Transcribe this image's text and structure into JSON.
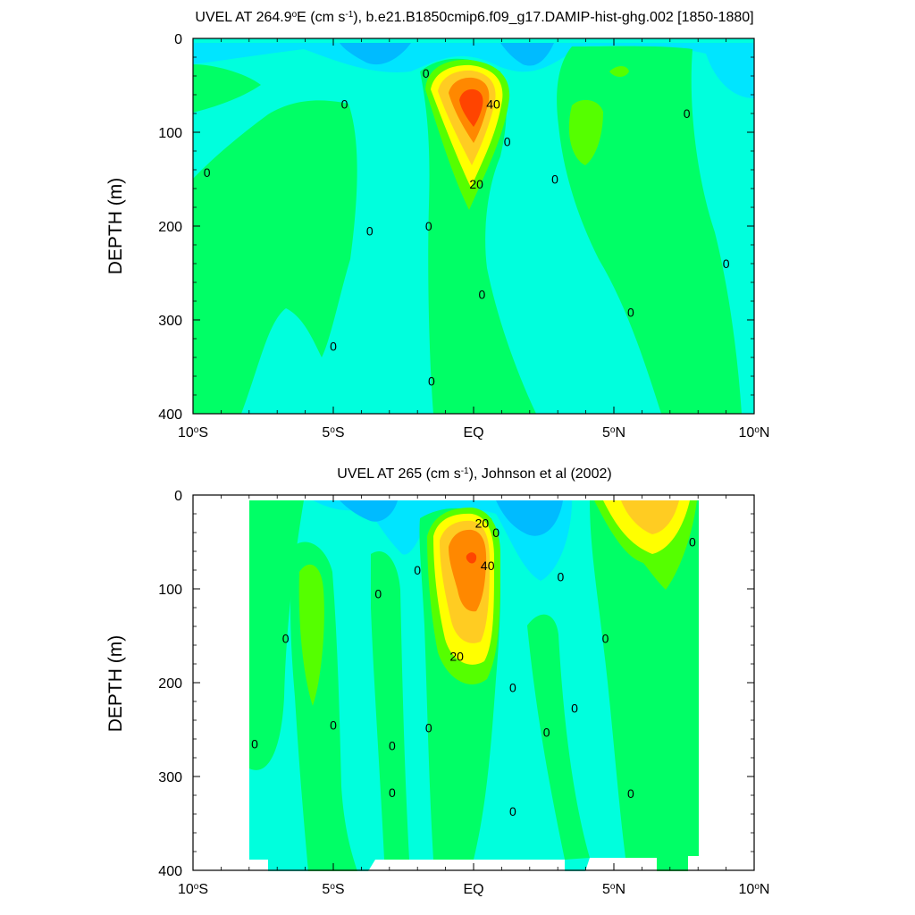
{
  "chart_data": [
    {
      "type": "heatmap",
      "title_main": "UVEL AT 264.9",
      "title_deg": "o",
      "title_unit_pre": "E (cm s",
      "title_unit_sup": "-1",
      "title_rest": "), b.e21.B1850cmip6.f09_g17.DAMIP-hist-ghg.002 [1850-1880]",
      "ylabel": "DEPTH (m)",
      "xlim": [
        -10,
        10
      ],
      "ylim": [
        0,
        400
      ],
      "y_inverted": true,
      "data_lat_range": [
        -10,
        10
      ],
      "x_ticks": [
        {
          "num": "10",
          "sup": "o",
          "suf": "S"
        },
        {
          "num": "5",
          "sup": "o",
          "suf": "S"
        },
        {
          "num": "EQ",
          "sup": "",
          "suf": ""
        },
        {
          "num": "5",
          "sup": "o",
          "suf": "N"
        },
        {
          "num": "10",
          "sup": "o",
          "suf": "N"
        }
      ],
      "y_ticks": [
        "0",
        "100",
        "200",
        "300",
        "400"
      ],
      "colors": [
        "#00E5FF",
        "#00FFDD",
        "#00FF66",
        "#55FF00",
        "#FFFF00",
        "#FFCC22",
        "#FF8800",
        "#FF4400"
      ],
      "contour_labels": [
        {
          "text": "0",
          "lat": -9.5,
          "depth": 143
        },
        {
          "text": "0",
          "lat": -4.6,
          "depth": 70
        },
        {
          "text": "0",
          "lat": -3.7,
          "depth": 205
        },
        {
          "text": "0",
          "lat": -5.0,
          "depth": 328
        },
        {
          "text": "0",
          "lat": -1.7,
          "depth": 37
        },
        {
          "text": "0",
          "lat": -1.6,
          "depth": 200
        },
        {
          "text": "0",
          "lat": -1.5,
          "depth": 365
        },
        {
          "text": "0",
          "lat": 1.2,
          "depth": 110
        },
        {
          "text": "0",
          "lat": 0.3,
          "depth": 273
        },
        {
          "text": "0",
          "lat": 2.9,
          "depth": 150
        },
        {
          "text": "0",
          "lat": 5.6,
          "depth": 292
        },
        {
          "text": "0",
          "lat": 7.6,
          "depth": 80
        },
        {
          "text": "0",
          "lat": 9.0,
          "depth": 240
        },
        {
          "text": "40",
          "lat": 0.7,
          "depth": 70
        },
        {
          "text": "20",
          "lat": 0.1,
          "depth": 155
        }
      ]
    },
    {
      "type": "heatmap",
      "title_main": "UVEL AT 265 (cm s",
      "title_deg": "",
      "title_unit_pre": "",
      "title_unit_sup": "-1",
      "title_rest": "), Johnson et al (2002)",
      "ylabel": "DEPTH (m)",
      "xlim": [
        -10,
        10
      ],
      "ylim": [
        0,
        400
      ],
      "y_inverted": true,
      "data_lat_range": [
        -8,
        8
      ],
      "x_ticks": [
        {
          "num": "10",
          "sup": "o",
          "suf": "S"
        },
        {
          "num": "5",
          "sup": "o",
          "suf": "S"
        },
        {
          "num": "EQ",
          "sup": "",
          "suf": ""
        },
        {
          "num": "5",
          "sup": "o",
          "suf": "N"
        },
        {
          "num": "10",
          "sup": "o",
          "suf": "N"
        }
      ],
      "y_ticks": [
        "0",
        "100",
        "200",
        "300",
        "400"
      ],
      "colors": [
        "#00BBFF",
        "#00E5FF",
        "#00FFDD",
        "#00FF66",
        "#55FF00",
        "#FFFF00",
        "#FFCC22",
        "#FF8800",
        "#FF4400"
      ],
      "contour_labels": [
        {
          "text": "0",
          "lat": -7.8,
          "depth": 265
        },
        {
          "text": "0",
          "lat": -6.7,
          "depth": 153
        },
        {
          "text": "0",
          "lat": -5.0,
          "depth": 245
        },
        {
          "text": "0",
          "lat": -3.4,
          "depth": 105
        },
        {
          "text": "0",
          "lat": -2.9,
          "depth": 267
        },
        {
          "text": "0",
          "lat": -2.9,
          "depth": 317
        },
        {
          "text": "0",
          "lat": -2.0,
          "depth": 80
        },
        {
          "text": "0",
          "lat": -1.6,
          "depth": 248
        },
        {
          "text": "0",
          "lat": 0.8,
          "depth": 40
        },
        {
          "text": "0",
          "lat": 1.4,
          "depth": 205
        },
        {
          "text": "0",
          "lat": 1.4,
          "depth": 337
        },
        {
          "text": "0",
          "lat": 2.6,
          "depth": 253
        },
        {
          "text": "0",
          "lat": 3.1,
          "depth": 87
        },
        {
          "text": "0",
          "lat": 3.6,
          "depth": 227
        },
        {
          "text": "0",
          "lat": 4.7,
          "depth": 153
        },
        {
          "text": "0",
          "lat": 5.6,
          "depth": 318
        },
        {
          "text": "0",
          "lat": 7.8,
          "depth": 50
        },
        {
          "text": "40",
          "lat": 0.5,
          "depth": 75
        },
        {
          "text": "20",
          "lat": 0.3,
          "depth": 30
        },
        {
          "text": "20",
          "lat": -0.6,
          "depth": 172
        }
      ]
    }
  ]
}
